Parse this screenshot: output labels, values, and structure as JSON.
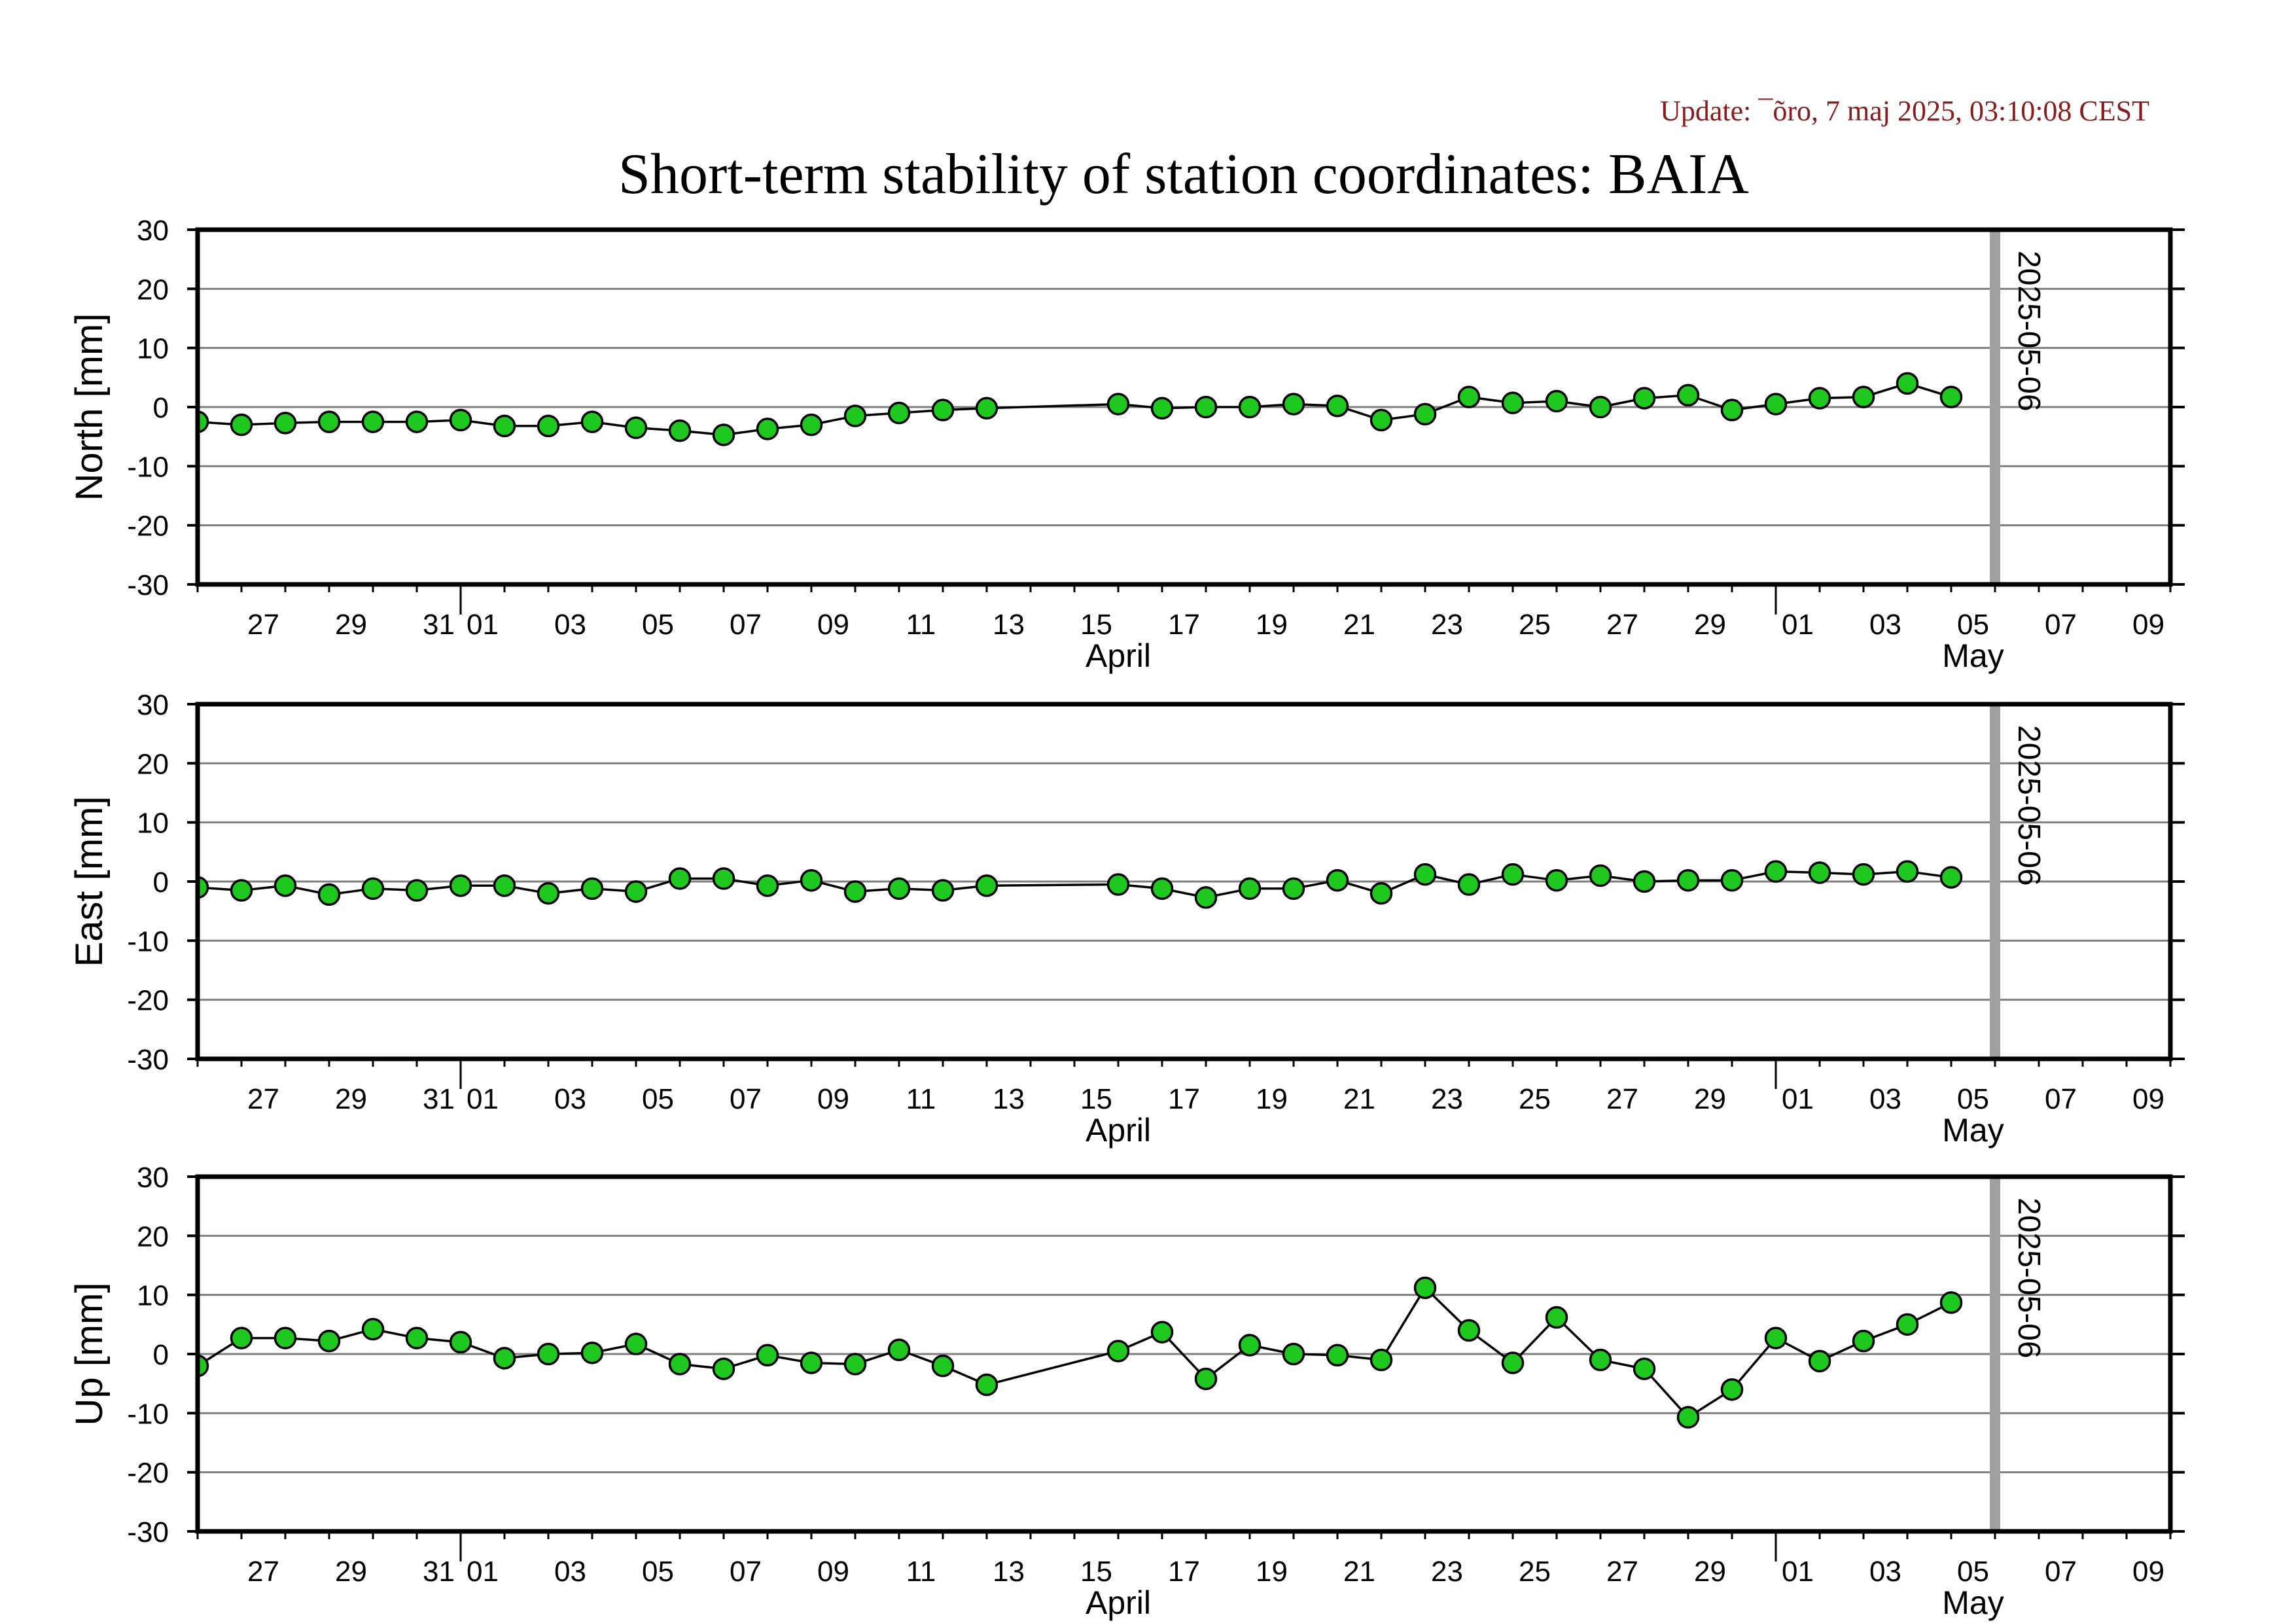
{
  "update_text": "Update: ¯õro, 7 maj 2025, 03:10:08 CEST",
  "title": "Short-term stability of station coordinates: BAIA",
  "colors": {
    "update_text": "#8b1a1a",
    "marker_fill": "#1ec81e",
    "marker_edge": "#000000",
    "line": "#000000",
    "grid": "#808080",
    "reference_line": "#a0a0a0",
    "frame": "#000000"
  },
  "chart_data": {
    "type": "line",
    "xlim": [
      "2025-03-26",
      "2025-05-10"
    ],
    "ylim": [
      -30,
      30
    ],
    "grid": true,
    "yticks": [
      "30",
      "20",
      "10",
      "0",
      "-10",
      "-20",
      "-30"
    ],
    "xticks": [
      {
        "date": "2025-03-27",
        "label": "27"
      },
      {
        "date": "2025-03-29",
        "label": "29"
      },
      {
        "date": "2025-03-31",
        "label": "31"
      },
      {
        "date": "2025-04-01",
        "label": "01"
      },
      {
        "date": "2025-04-03",
        "label": "03"
      },
      {
        "date": "2025-04-05",
        "label": "05"
      },
      {
        "date": "2025-04-07",
        "label": "07"
      },
      {
        "date": "2025-04-09",
        "label": "09"
      },
      {
        "date": "2025-04-11",
        "label": "11"
      },
      {
        "date": "2025-04-13",
        "label": "13"
      },
      {
        "date": "2025-04-15",
        "label": "15"
      },
      {
        "date": "2025-04-17",
        "label": "17"
      },
      {
        "date": "2025-04-19",
        "label": "19"
      },
      {
        "date": "2025-04-21",
        "label": "21"
      },
      {
        "date": "2025-04-23",
        "label": "23"
      },
      {
        "date": "2025-04-25",
        "label": "25"
      },
      {
        "date": "2025-04-27",
        "label": "27"
      },
      {
        "date": "2025-04-29",
        "label": "29"
      },
      {
        "date": "2025-05-01",
        "label": "01"
      },
      {
        "date": "2025-05-03",
        "label": "03"
      },
      {
        "date": "2025-05-05",
        "label": "05"
      },
      {
        "date": "2025-05-07",
        "label": "07"
      },
      {
        "date": "2025-05-09",
        "label": "09"
      }
    ],
    "months": [
      {
        "label": "April",
        "from": "2025-04-01",
        "to": "2025-05-01"
      },
      {
        "label": "May",
        "from": "2025-05-01",
        "to": "2025-05-10"
      }
    ],
    "reference_line": {
      "date": "2025-05-06",
      "label": "2025-05-06"
    },
    "x": [
      "2025-03-26",
      "2025-03-27",
      "2025-03-28",
      "2025-03-29",
      "2025-03-30",
      "2025-03-31",
      "2025-04-01",
      "2025-04-02",
      "2025-04-03",
      "2025-04-04",
      "2025-04-05",
      "2025-04-06",
      "2025-04-07",
      "2025-04-08",
      "2025-04-09",
      "2025-04-10",
      "2025-04-11",
      "2025-04-12",
      "2025-04-13",
      "2025-04-16",
      "2025-04-17",
      "2025-04-18",
      "2025-04-19",
      "2025-04-20",
      "2025-04-21",
      "2025-04-22",
      "2025-04-23",
      "2025-04-24",
      "2025-04-25",
      "2025-04-26",
      "2025-04-27",
      "2025-04-28",
      "2025-04-29",
      "2025-04-30",
      "2025-05-01",
      "2025-05-02",
      "2025-05-03",
      "2025-05-04",
      "2025-05-05"
    ],
    "panels": [
      {
        "ylabel": "North [mm]",
        "values": [
          -2.5,
          -3.0,
          -2.7,
          -2.5,
          -2.5,
          -2.5,
          -2.2,
          -3.2,
          -3.2,
          -2.5,
          -3.5,
          -4.0,
          -4.7,
          -3.7,
          -3.0,
          -1.5,
          -1.0,
          -0.5,
          -0.2,
          0.5,
          -0.2,
          0.0,
          0.0,
          0.5,
          0.2,
          -2.2,
          -1.2,
          1.7,
          0.7,
          1.0,
          0.0,
          1.5,
          2.0,
          -0.5,
          0.5,
          1.5,
          1.7,
          4.0,
          1.7
        ]
      },
      {
        "ylabel": "East [mm]",
        "values": [
          -1.0,
          -1.5,
          -0.7,
          -2.2,
          -1.2,
          -1.5,
          -0.7,
          -0.7,
          -2.0,
          -1.2,
          -1.7,
          0.5,
          0.5,
          -0.7,
          0.2,
          -1.7,
          -1.2,
          -1.5,
          -0.7,
          -0.5,
          -1.2,
          -2.7,
          -1.2,
          -1.2,
          0.2,
          -2.0,
          1.2,
          -0.5,
          1.2,
          0.2,
          1.0,
          0.0,
          0.2,
          0.2,
          1.7,
          1.5,
          1.2,
          1.7,
          0.7
        ]
      },
      {
        "ylabel": "Up [mm]",
        "values": [
          -2.0,
          2.7,
          2.7,
          2.2,
          4.2,
          2.7,
          2.0,
          -0.7,
          0.0,
          0.2,
          1.7,
          -1.7,
          -2.5,
          -0.2,
          -1.5,
          -1.7,
          0.7,
          -2.0,
          -5.2,
          0.5,
          3.7,
          -4.2,
          1.5,
          0.0,
          -0.2,
          -1.0,
          11.2,
          4.0,
          -1.5,
          6.2,
          -1.0,
          -2.5,
          -10.7,
          -6.0,
          2.7,
          -1.2,
          2.2,
          5.0,
          8.7
        ]
      }
    ]
  }
}
